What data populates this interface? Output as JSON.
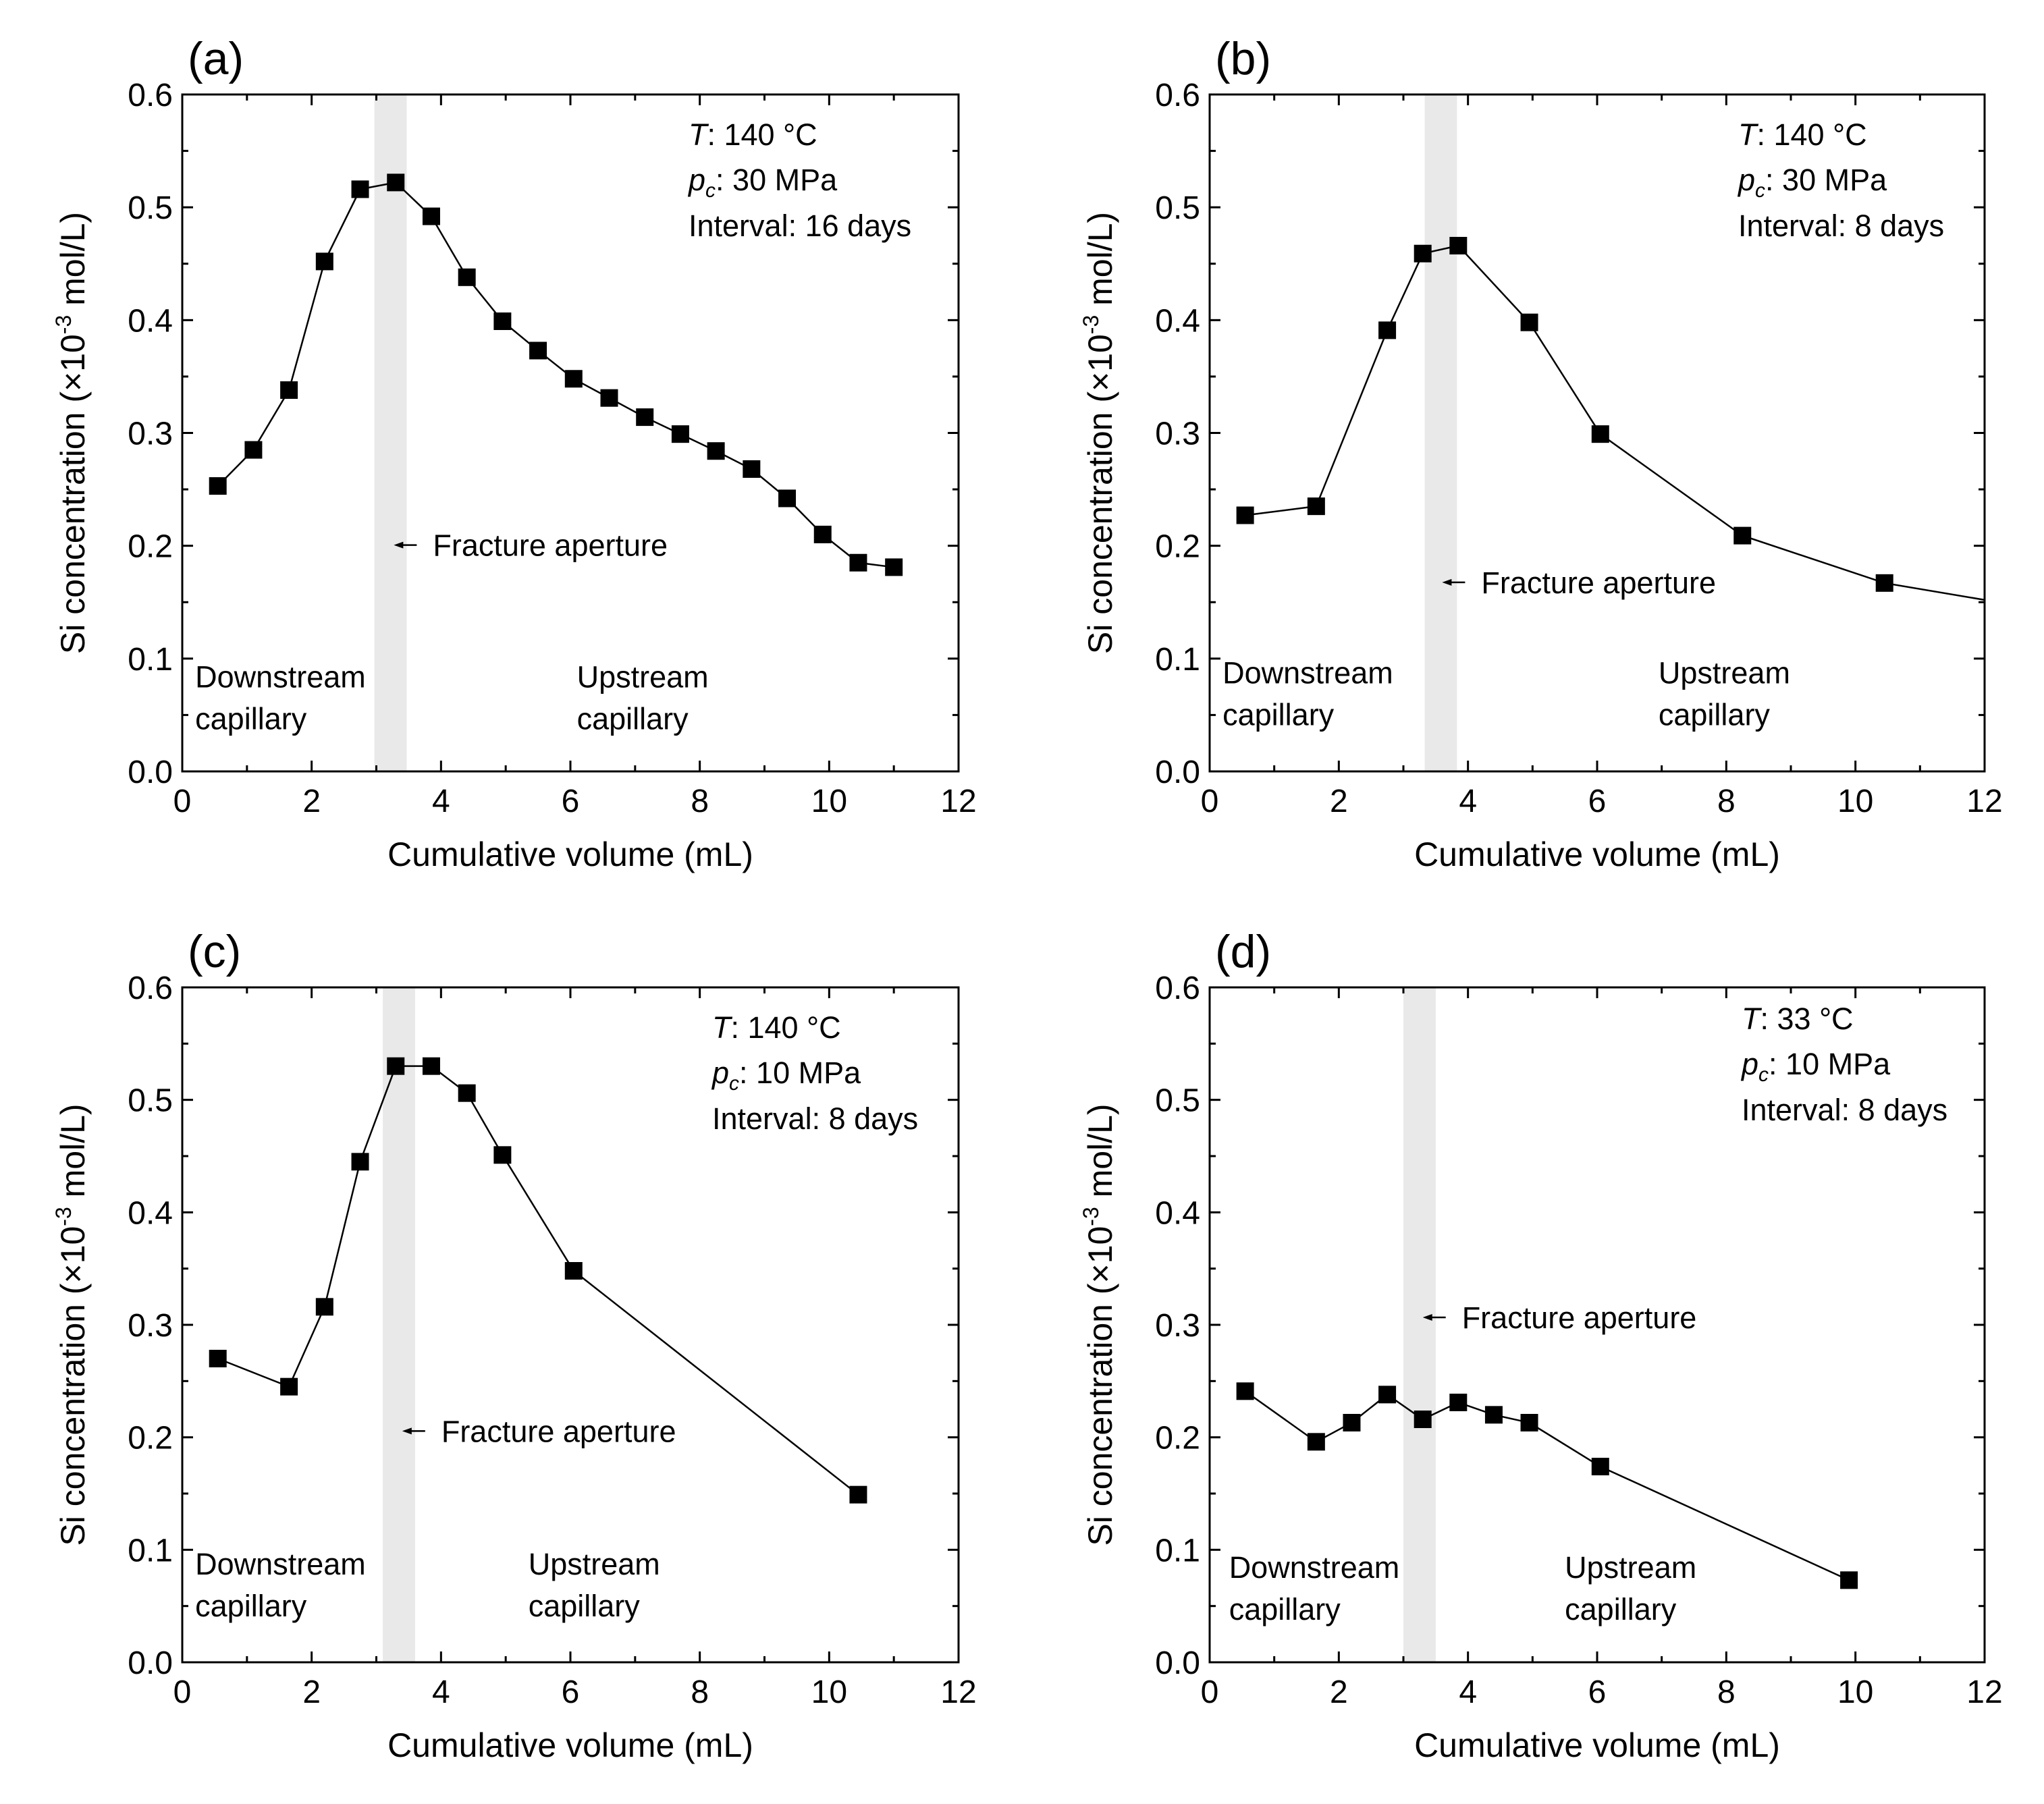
{
  "chart_data": [
    {
      "type": "line",
      "panel": "(a)",
      "xlabel": "Cumulative volume (mL)",
      "ylabel": "Si concentration (×10",
      "ylabel_exp": "-3",
      "ylabel_unit": " mol/L)",
      "xlim": [
        0,
        12
      ],
      "ylim": [
        0,
        0.6
      ],
      "xticks": [
        "0",
        "2",
        "4",
        "6",
        "8",
        "10",
        "12"
      ],
      "yticks": [
        "0.0",
        "0.1",
        "0.2",
        "0.3",
        "0.4",
        "0.5",
        "0.6"
      ],
      "band": [
        2.97,
        3.47
      ],
      "marker": "square",
      "conditions": {
        "T_label": "T",
        "T_value": ": 140 ",
        "T_unit": "°C",
        "p_label": "p",
        "p_sub": "c",
        "p_value": ": 30 MPa",
        "interval": "Interval: 16 days"
      },
      "aperture_label": "Fracture aperture",
      "aperture_pos": [
        3.27,
        0.2
      ],
      "downstream": [
        "Downstream",
        "capillary"
      ],
      "downstream_pos": [
        0.2,
        0.0745
      ],
      "upstream": [
        "Upstream",
        "capillary"
      ],
      "upstream_pos": [
        6.1,
        0.0745
      ],
      "series": [
        {
          "name": "Si concentration",
          "x": [
            0.55,
            1.1,
            1.65,
            2.2,
            2.75,
            3.3,
            3.85,
            4.4,
            4.95,
            5.5,
            6.05,
            6.6,
            7.15,
            7.7,
            8.25,
            8.8,
            9.35,
            9.9,
            10.45,
            11.0
          ],
          "y": [
            0.253,
            0.285,
            0.338,
            0.452,
            0.516,
            0.522,
            0.492,
            0.438,
            0.399,
            0.373,
            0.348,
            0.331,
            0.314,
            0.299,
            0.284,
            0.268,
            0.242,
            0.21,
            0.185,
            0.181
          ]
        }
      ]
    },
    {
      "type": "line",
      "panel": "(b)",
      "xlabel": "Cumulative volume (mL)",
      "ylabel": "Si concentration (×10",
      "ylabel_exp": "-3",
      "ylabel_unit": " mol/L)",
      "xlim": [
        0,
        12
      ],
      "ylim": [
        0,
        0.6
      ],
      "xticks": [
        "0",
        "2",
        "4",
        "6",
        "8",
        "10",
        "12"
      ],
      "yticks": [
        "0.0",
        "0.1",
        "0.2",
        "0.3",
        "0.4",
        "0.5",
        "0.6"
      ],
      "band": [
        3.33,
        3.83
      ],
      "marker": "square",
      "conditions": {
        "T_label": "T",
        "T_value": ": 140 ",
        "T_unit": "°C",
        "p_label": "p",
        "p_sub": "c",
        "p_value": ": 30 MPa",
        "interval": "Interval: 8 days"
      },
      "aperture_label": "Fracture aperture",
      "aperture_pos": [
        3.6,
        0.167
      ],
      "downstream": [
        "Downstream",
        "capillary"
      ],
      "downstream_pos": [
        0.2,
        0.078
      ],
      "upstream": [
        "Upstream",
        "capillary"
      ],
      "upstream_pos": [
        6.95,
        0.078
      ],
      "series": [
        {
          "name": "Si concentration",
          "x": [
            0.55,
            1.65,
            2.75,
            3.3,
            3.85,
            4.95,
            6.05,
            8.25,
            10.45,
            12.0
          ],
          "y": [
            0.227,
            0.235,
            0.391,
            0.459,
            0.466,
            0.398,
            0.299,
            0.209,
            0.167,
            0.152
          ],
          "markers": [
            true,
            true,
            true,
            true,
            true,
            true,
            true,
            true,
            true,
            false
          ]
        }
      ]
    },
    {
      "type": "line",
      "panel": "(c)",
      "xlabel": "Cumulative volume (mL)",
      "ylabel": "Si concentration (×10",
      "ylabel_exp": "-3",
      "ylabel_unit": " mol/L)",
      "xlim": [
        0,
        12
      ],
      "ylim": [
        0,
        0.6
      ],
      "xticks": [
        "0",
        "2",
        "4",
        "6",
        "8",
        "10",
        "12"
      ],
      "yticks": [
        "0.0",
        "0.1",
        "0.2",
        "0.3",
        "0.4",
        "0.5",
        "0.6"
      ],
      "band": [
        3.1,
        3.6
      ],
      "marker": "square",
      "conditions": {
        "T_label": "T",
        "T_value": ": 140 ",
        "T_unit": "°C",
        "p_label": "p",
        "p_sub": "c",
        "p_value": ": 10 MPa",
        "interval": "Interval: 8 days"
      },
      "aperture_label": "Fracture aperture",
      "aperture_pos": [
        3.4,
        0.205
      ],
      "downstream": [
        "Downstream",
        "capillary"
      ],
      "downstream_pos": [
        0.2,
        0.078
      ],
      "upstream": [
        "Upstream",
        "capillary"
      ],
      "upstream_pos": [
        5.35,
        0.078
      ],
      "series": [
        {
          "name": "Si concentration",
          "x": [
            0.55,
            1.65,
            2.2,
            2.75,
            3.3,
            3.85,
            4.4,
            4.95,
            6.05,
            10.45
          ],
          "y": [
            0.27,
            0.245,
            0.316,
            0.445,
            0.53,
            0.53,
            0.506,
            0.451,
            0.348,
            0.149
          ]
        }
      ]
    },
    {
      "type": "line",
      "panel": "(d)",
      "xlabel": "Cumulative volume (mL)",
      "ylabel": "Si concentration (×10",
      "ylabel_exp": "-3",
      "ylabel_unit": " mol/L)",
      "xlim": [
        0,
        12
      ],
      "ylim": [
        0,
        0.6
      ],
      "xticks": [
        "0",
        "2",
        "4",
        "6",
        "8",
        "10",
        "12"
      ],
      "yticks": [
        "0.0",
        "0.1",
        "0.2",
        "0.3",
        "0.4",
        "0.5",
        "0.6"
      ],
      "band": [
        3.0,
        3.5
      ],
      "marker": "square",
      "conditions": {
        "T_label": "T",
        "T_value": ": 33 ",
        "T_unit": "°C",
        "p_label": "p",
        "p_sub": "c",
        "p_value": ": 10 MPa",
        "interval": "Interval: 8 days"
      },
      "aperture_label": "Fracture aperture",
      "aperture_pos": [
        3.3,
        0.306
      ],
      "downstream": [
        "Downstream",
        "capillary"
      ],
      "downstream_pos": [
        0.3,
        0.075
      ],
      "upstream": [
        "Upstream",
        "capillary"
      ],
      "upstream_pos": [
        5.5,
        0.075
      ],
      "series": [
        {
          "name": "Si concentration",
          "x": [
            0.55,
            1.65,
            2.2,
            2.75,
            3.3,
            3.85,
            4.4,
            4.95,
            6.05,
            9.9
          ],
          "y": [
            0.241,
            0.196,
            0.213,
            0.238,
            0.216,
            0.231,
            0.22,
            0.213,
            0.174,
            0.073
          ]
        }
      ]
    }
  ]
}
